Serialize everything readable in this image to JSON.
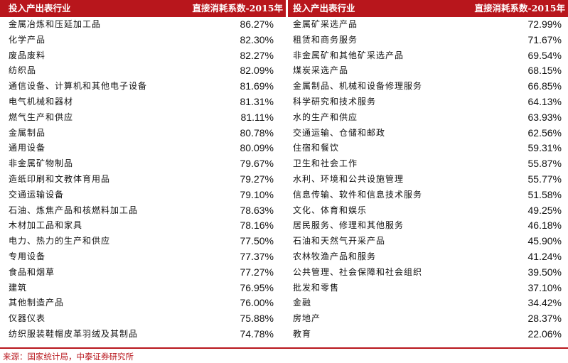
{
  "table": {
    "header": [
      "投入产出表行业",
      "直接消耗系数-2015年",
      "投入产出表行业",
      "直接消耗系数-2015年"
    ],
    "rows": [
      [
        "金属冶炼和压延加工品",
        "86.27%",
        "金属矿采选产品",
        "72.99%"
      ],
      [
        "化学产品",
        "82.30%",
        "租赁和商务服务",
        "71.67%"
      ],
      [
        "废品废料",
        "82.27%",
        "非金属矿和其他矿采选产品",
        "69.54%"
      ],
      [
        "纺织品",
        "82.09%",
        "煤炭采选产品",
        "68.15%"
      ],
      [
        "通信设备、计算机和其他电子设备",
        "81.69%",
        "金属制品、机械和设备修理服务",
        "66.85%"
      ],
      [
        "电气机械和器材",
        "81.31%",
        "科学研究和技术服务",
        "64.13%"
      ],
      [
        "燃气生产和供应",
        "81.11%",
        "水的生产和供应",
        "63.93%"
      ],
      [
        "金属制品",
        "80.78%",
        "交通运输、仓储和邮政",
        "62.56%"
      ],
      [
        "通用设备",
        "80.09%",
        "住宿和餐饮",
        "59.31%"
      ],
      [
        "非金属矿物制品",
        "79.67%",
        "卫生和社会工作",
        "55.87%"
      ],
      [
        "造纸印刷和文教体育用品",
        "79.27%",
        "水利、环境和公共设施管理",
        "55.77%"
      ],
      [
        "交通运输设备",
        "79.10%",
        "信息传输、软件和信息技术服务",
        "51.58%"
      ],
      [
        "石油、炼焦产品和核燃料加工品",
        "78.63%",
        "文化、体育和娱乐",
        "49.25%"
      ],
      [
        "木材加工品和家具",
        "78.16%",
        "居民服务、修理和其他服务",
        "46.18%"
      ],
      [
        "电力、热力的生产和供应",
        "77.50%",
        "石油和天然气开采产品",
        "45.90%"
      ],
      [
        "专用设备",
        "77.37%",
        "农林牧渔产品和服务",
        "41.24%"
      ],
      [
        "食品和烟草",
        "77.27%",
        "公共管理、社会保障和社会组织",
        "39.50%"
      ],
      [
        "建筑",
        "76.95%",
        "批发和零售",
        "37.10%"
      ],
      [
        "其他制造产品",
        "76.00%",
        "金融",
        "34.42%"
      ],
      [
        "仪器仪表",
        "75.88%",
        "房地产",
        "28.37%"
      ],
      [
        "纺织服装鞋帽皮革羽绒及其制品",
        "74.78%",
        "教育",
        "22.06%"
      ]
    ]
  },
  "source": "来源：国家统计局，中泰证券研究所"
}
